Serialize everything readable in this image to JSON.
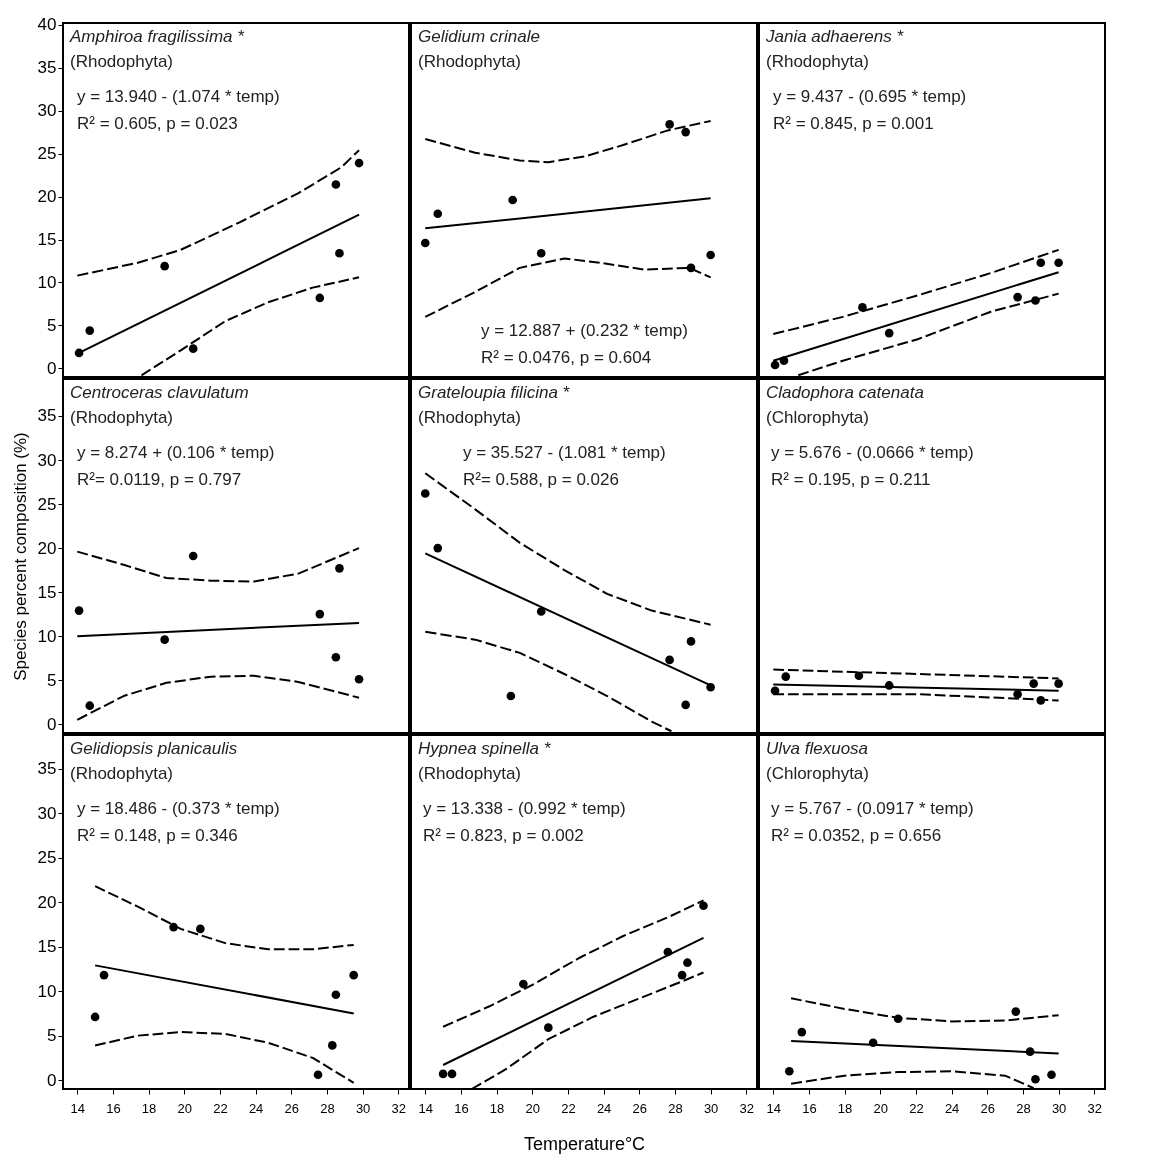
{
  "chart_data": [
    {
      "type": "scatter",
      "annotations": [
        "Amphiroa fragilissima *",
        "(Rhodophyta)",
        "y = 13.940 - (1.074 * temp)",
        "R² = 0.605, p = 0.023"
      ],
      "xlim": [
        13.2,
        32.6
      ],
      "ylim": [
        -1,
        40.2
      ],
      "yticks": [
        0,
        5,
        10,
        15,
        20,
        25,
        30,
        35,
        40
      ],
      "tick_labels": "y",
      "series": [
        {
          "marker": "circle",
          "color": "#000000",
          "x": [
            14.1,
            14.7,
            18.9,
            20.5,
            27.6,
            28.5,
            28.7,
            29.8
          ],
          "values": [
            1.8,
            4.4,
            11.9,
            2.3,
            8.2,
            21.4,
            13.4,
            23.9
          ]
        },
        {
          "type": "line",
          "color": "#000000",
          "line_style": "solid",
          "x": [
            14.1,
            29.8
          ],
          "values": [
            1.8,
            17.9
          ]
        },
        {
          "type": "line",
          "color": "#000000",
          "line_style": "dashed",
          "x": [
            14,
            17.4,
            19.8,
            23.1,
            26.4,
            28.8,
            29.8
          ],
          "values": [
            10.8,
            12.3,
            13.8,
            17,
            20.4,
            23.4,
            25.4
          ]
        },
        {
          "type": "line",
          "color": "#000000",
          "line_style": "dashed",
          "x": [
            17.6,
            19.8,
            22.3,
            24.7,
            27.2,
            29.8
          ],
          "values": [
            -0.8,
            2.1,
            5.5,
            7.7,
            9.4,
            10.6
          ]
        }
      ]
    },
    {
      "type": "scatter",
      "annotations": [
        "Gelidium crinale",
        "(Rhodophyta)",
        "y = 12.887 + (0.232 * temp)",
        "R² = 0.0476, p = 0.604"
      ],
      "xlim": [
        13.2,
        32.6
      ],
      "ylim": [
        -1,
        40.2
      ],
      "tick_labels": false,
      "series": [
        {
          "marker": "circle",
          "color": "#000000",
          "x": [
            14.0,
            14.7,
            18.9,
            20.5,
            27.7,
            28.6,
            28.9,
            30.0
          ],
          "values": [
            14.6,
            18.0,
            19.6,
            13.4,
            28.4,
            27.5,
            11.7,
            13.2
          ]
        },
        {
          "type": "line",
          "color": "#000000",
          "line_style": "solid",
          "x": [
            14,
            30
          ],
          "values": [
            16.3,
            19.8
          ]
        },
        {
          "type": "line",
          "color": "#000000",
          "line_style": "dashed",
          "x": [
            14,
            16.8,
            19.3,
            20.9,
            23,
            25.1,
            27.6,
            30
          ],
          "values": [
            26.7,
            25.1,
            24.2,
            24,
            24.7,
            26,
            27.7,
            28.8
          ]
        },
        {
          "type": "line",
          "color": "#000000",
          "line_style": "dashed",
          "x": [
            14,
            16.8,
            19.3,
            21.8,
            23.8,
            26.3,
            28.8,
            30
          ],
          "values": [
            6.0,
            8.9,
            11.7,
            12.8,
            12.3,
            11.5,
            11.7,
            10.6
          ]
        }
      ]
    },
    {
      "type": "scatter",
      "annotations": [
        "Jania adhaerens *",
        "(Rhodophyta)",
        "y = 9.437 - (0.695 * temp)",
        "R² = 0.845, p = 0.001"
      ],
      "xlim": [
        13.2,
        32.6
      ],
      "ylim": [
        -1,
        40.2
      ],
      "tick_labels": false,
      "series": [
        {
          "marker": "circle",
          "color": "#000000",
          "x": [
            14.1,
            14.6,
            19.0,
            20.5,
            27.7,
            28.7,
            29.0,
            30.0
          ],
          "values": [
            0.4,
            0.9,
            7.1,
            4.1,
            8.3,
            7.9,
            12.3,
            12.3
          ]
        },
        {
          "type": "line",
          "color": "#000000",
          "line_style": "solid",
          "x": [
            14,
            30
          ],
          "values": [
            0.9,
            11.2
          ]
        },
        {
          "type": "line",
          "color": "#000000",
          "line_style": "dashed",
          "x": [
            14,
            17.9,
            22.1,
            26.2,
            30
          ],
          "values": [
            4.0,
            6,
            8.5,
            11.1,
            13.8
          ]
        },
        {
          "type": "line",
          "color": "#000000",
          "line_style": "dashed",
          "x": [
            15.4,
            17.9,
            22.1,
            26.2,
            30
          ],
          "values": [
            -0.8,
            0.9,
            3.4,
            6.6,
            8.7
          ]
        }
      ]
    },
    {
      "type": "scatter",
      "annotations": [
        "Centroceras clavulatum",
        "(Rhodophyta)",
        "y = 8.274 + (0.106 * temp)",
        "R²= 0.0119, p = 0.797"
      ],
      "ylabel": "Species percent composition (%)",
      "xlim": [
        13.2,
        32.6
      ],
      "ylim": [
        -1,
        39.2
      ],
      "yticks": [
        0,
        5,
        10,
        15,
        20,
        25,
        30,
        35
      ],
      "tick_labels": "y",
      "series": [
        {
          "marker": "circle",
          "color": "#000000",
          "x": [
            14.1,
            14.7,
            18.9,
            20.5,
            27.6,
            28.5,
            28.7,
            29.8
          ],
          "values": [
            12.9,
            2.1,
            9.6,
            19.1,
            12.5,
            7.6,
            17.7,
            5.1
          ]
        },
        {
          "type": "line",
          "color": "#000000",
          "line_style": "solid",
          "x": [
            14,
            29.8
          ],
          "values": [
            10.0,
            11.5
          ]
        },
        {
          "type": "line",
          "color": "#000000",
          "line_style": "dashed",
          "x": [
            14,
            16.6,
            19,
            21.5,
            23.9,
            26.4,
            29.8
          ],
          "values": [
            19.6,
            18.1,
            16.6,
            16.3,
            16.2,
            17.1,
            20
          ]
        },
        {
          "type": "line",
          "color": "#000000",
          "line_style": "dashed",
          "x": [
            14,
            16.6,
            19,
            21.5,
            23.9,
            26.4,
            29.8
          ],
          "values": [
            0.5,
            3.2,
            4.7,
            5.4,
            5.5,
            4.8,
            3.0
          ]
        }
      ]
    },
    {
      "type": "scatter",
      "annotations": [
        "Grateloupia filicina *",
        "(Rhodophyta)",
        "y = 35.527 - (1.081 * temp)",
        "R²= 0.588, p = 0.026"
      ],
      "xlim": [
        13.2,
        32.6
      ],
      "ylim": [
        -1,
        39.2
      ],
      "tick_labels": false,
      "series": [
        {
          "marker": "circle",
          "color": "#000000",
          "x": [
            14.0,
            14.7,
            18.8,
            20.5,
            27.7,
            28.6,
            28.9,
            30.0
          ],
          "values": [
            26.2,
            20.0,
            3.2,
            12.8,
            7.3,
            2.2,
            9.4,
            4.2
          ]
        },
        {
          "type": "line",
          "color": "#000000",
          "line_style": "solid",
          "x": [
            14,
            30
          ],
          "values": [
            19.4,
            4.4
          ]
        },
        {
          "type": "line",
          "color": "#000000",
          "line_style": "dashed",
          "x": [
            14,
            16.8,
            19.3,
            21.8,
            24.2,
            26.7,
            30
          ],
          "values": [
            28.5,
            24.4,
            20.6,
            17.5,
            14.8,
            12.9,
            11.3
          ]
        },
        {
          "type": "line",
          "color": "#000000",
          "line_style": "dashed",
          "x": [
            14,
            16.8,
            19.3,
            21.8,
            24.2,
            26.7,
            27.8
          ],
          "values": [
            10.5,
            9.6,
            8.1,
            5.7,
            3.2,
            0.3,
            -0.8
          ]
        }
      ]
    },
    {
      "type": "scatter",
      "annotations": [
        "Cladophora catenata",
        "(Chlorophyta)",
        "y = 5.676 - (0.0666 * temp)",
        "R² = 0.195, p = 0.211"
      ],
      "xlim": [
        13.2,
        32.6
      ],
      "ylim": [
        -1,
        39.2
      ],
      "tick_labels": false,
      "series": [
        {
          "marker": "circle",
          "color": "#000000",
          "x": [
            14.1,
            14.7,
            18.8,
            20.5,
            27.7,
            28.6,
            29.0,
            30.0
          ],
          "values": [
            3.8,
            5.4,
            5.5,
            4.4,
            3.4,
            4.6,
            2.7,
            4.6
          ]
        },
        {
          "type": "line",
          "color": "#000000",
          "line_style": "solid",
          "x": [
            14,
            30
          ],
          "values": [
            4.5,
            3.8
          ]
        },
        {
          "type": "line",
          "color": "#000000",
          "line_style": "dashed",
          "x": [
            14,
            22.1,
            30
          ],
          "values": [
            6.2,
            5.7,
            5.2
          ]
        },
        {
          "type": "line",
          "color": "#000000",
          "line_style": "dashed",
          "x": [
            14,
            22.1,
            30
          ],
          "values": [
            3.4,
            3.4,
            2.7
          ]
        }
      ]
    },
    {
      "type": "scatter",
      "annotations": [
        "Gelidiopsis planicaulis",
        "(Rhodophyta)",
        "y = 18.486 - (0.373 * temp)",
        "R² = 0.148, p = 0.346"
      ],
      "xlim": [
        13.2,
        32.6
      ],
      "ylim": [
        -1,
        38.8
      ],
      "xticks": [
        14,
        16,
        18,
        20,
        22,
        24,
        26,
        28,
        30,
        32
      ],
      "yticks": [
        0,
        5,
        10,
        15,
        20,
        25,
        30,
        35
      ],
      "series": [
        {
          "marker": "circle",
          "color": "#000000",
          "x": [
            15.0,
            15.5,
            19.4,
            20.9,
            27.5,
            28.3,
            28.5,
            29.5
          ],
          "values": [
            7.1,
            11.8,
            17.2,
            17.0,
            0.6,
            3.9,
            9.6,
            11.8
          ]
        },
        {
          "type": "line",
          "color": "#000000",
          "line_style": "solid",
          "x": [
            15,
            29.5
          ],
          "values": [
            12.9,
            7.5
          ]
        },
        {
          "type": "line",
          "color": "#000000",
          "line_style": "dashed",
          "x": [
            15,
            17.4,
            19.8,
            22.3,
            24.7,
            27.2,
            29.5
          ],
          "values": [
            21.8,
            19.5,
            17.0,
            15.4,
            14.7,
            14.7,
            15.2
          ]
        },
        {
          "type": "line",
          "color": "#000000",
          "line_style": "dashed",
          "x": [
            15,
            17.4,
            19.8,
            22.3,
            24.7,
            27.2,
            29.5
          ],
          "values": [
            3.9,
            5.0,
            5.4,
            5.2,
            4.2,
            2.5,
            -0.3
          ]
        }
      ]
    },
    {
      "type": "scatter",
      "annotations": [
        "Hypnea spinella *",
        "(Rhodophyta)",
        "y = 13.338 - (0.992 * temp)",
        "R² = 0.823, p = 0.002"
      ],
      "xlabel": "Temperature°C",
      "xlim": [
        13.2,
        32.6
      ],
      "ylim": [
        -1,
        38.8
      ],
      "xticks": [
        14,
        16,
        18,
        20,
        22,
        24,
        26,
        28,
        30,
        32
      ],
      "tick_labels": "x",
      "series": [
        {
          "marker": "circle",
          "color": "#000000",
          "x": [
            15.0,
            15.5,
            19.5,
            20.9,
            27.6,
            28.4,
            28.7,
            29.6
          ],
          "values": [
            0.7,
            0.7,
            10.8,
            5.9,
            14.4,
            11.8,
            13.2,
            19.6
          ]
        },
        {
          "type": "line",
          "color": "#000000",
          "line_style": "solid",
          "x": [
            15,
            29.6
          ],
          "values": [
            1.7,
            16
          ]
        },
        {
          "type": "line",
          "color": "#000000",
          "line_style": "dashed",
          "x": [
            15,
            17.6,
            20.1,
            22.6,
            25.1,
            27.6,
            29.6
          ],
          "values": [
            6.0,
            8.3,
            10.8,
            13.7,
            16.2,
            18.3,
            20.2
          ]
        },
        {
          "type": "line",
          "color": "#000000",
          "line_style": "dashed",
          "x": [
            16.6,
            18.5,
            20.9,
            23.4,
            25.9,
            28.4,
            29.6
          ],
          "values": [
            -1,
            1.2,
            4.6,
            7.1,
            9.1,
            11.1,
            12.1
          ]
        }
      ]
    },
    {
      "type": "scatter",
      "annotations": [
        "Ulva flexuosa",
        "(Chlorophyta)",
        "y = 5.767 - (0.0917 * temp)",
        "R² = 0.0352, p = 0.656"
      ],
      "xlim": [
        13.2,
        32.6
      ],
      "ylim": [
        -1,
        38.8
      ],
      "xticks": [
        14,
        16,
        18,
        20,
        22,
        24,
        26,
        28,
        30,
        32
      ],
      "tick_labels": "x",
      "series": [
        {
          "marker": "circle",
          "color": "#000000",
          "x": [
            14.9,
            15.6,
            19.6,
            21.0,
            27.6,
            28.4,
            28.7,
            29.6
          ],
          "values": [
            1.0,
            5.4,
            4.2,
            6.9,
            7.7,
            3.2,
            0.1,
            0.6
          ]
        },
        {
          "type": "line",
          "color": "#000000",
          "line_style": "solid",
          "x": [
            15,
            30
          ],
          "values": [
            4.4,
            3.0
          ]
        },
        {
          "type": "line",
          "color": "#000000",
          "line_style": "dashed",
          "x": [
            15,
            18,
            21,
            24,
            27,
            30
          ],
          "values": [
            9.2,
            8.0,
            7.0,
            6.6,
            6.7,
            7.3
          ]
        },
        {
          "type": "line",
          "color": "#000000",
          "line_style": "dashed",
          "x": [
            15,
            18,
            21,
            24,
            27,
            28.6
          ],
          "values": [
            -0.4,
            0.5,
            0.9,
            1.0,
            0.5,
            -0.9
          ]
        }
      ]
    }
  ]
}
